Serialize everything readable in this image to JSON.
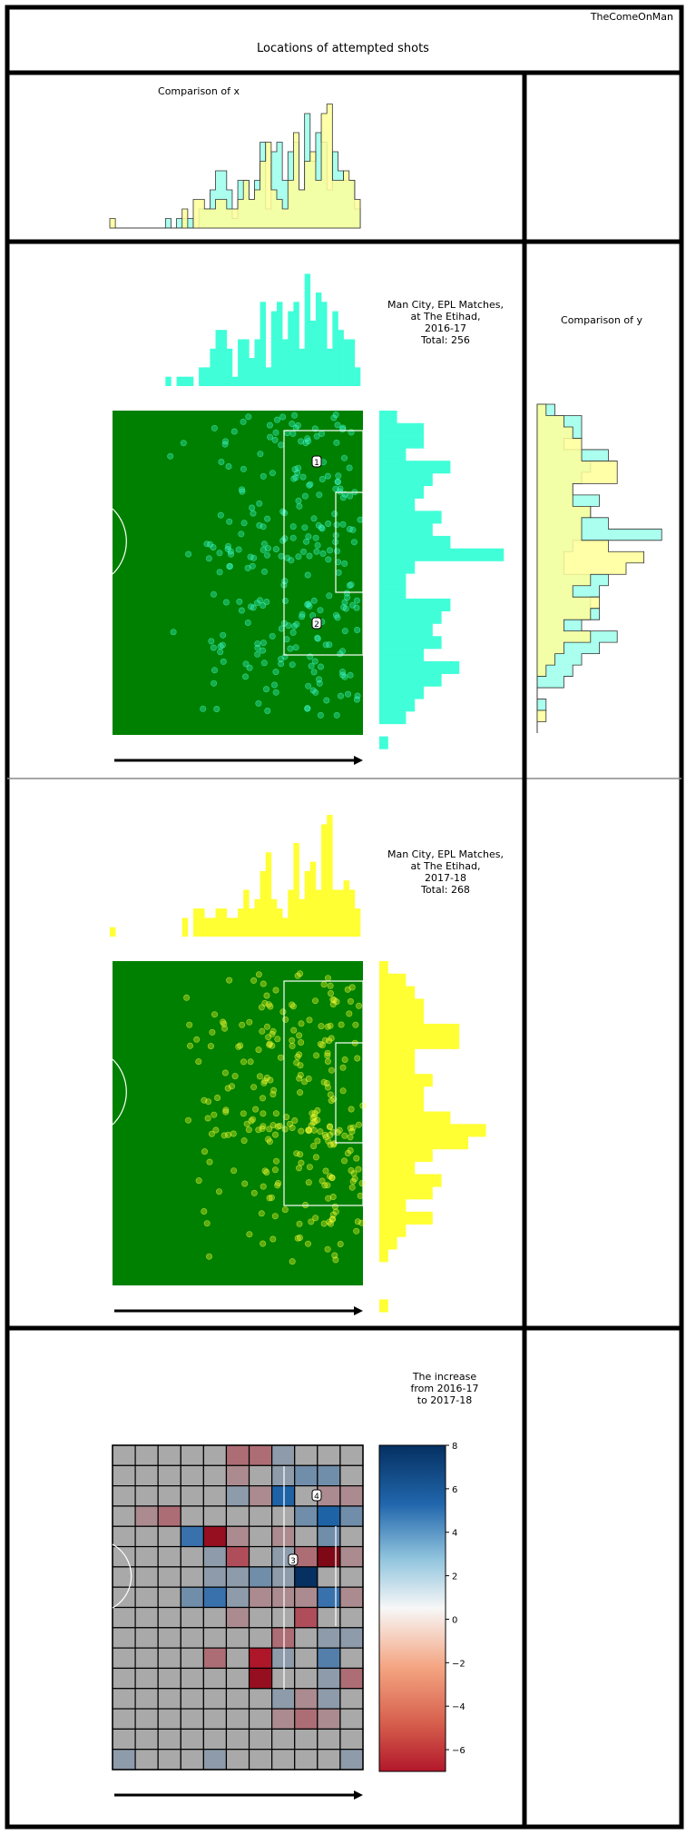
{
  "watermark": "TheComeOnMan",
  "title": "Locations of attempted shots",
  "colors": {
    "pitch": "#008000",
    "season_2016": "#40ffd8",
    "season_2017": "#ffff33",
    "compare_2016": "#aaffee",
    "compare_2017": "#ffff99",
    "overlap": "#d4ff88",
    "frame": "#000000"
  },
  "panels": {
    "compare_x_title": "Comparison of x",
    "compare_y_title": "Comparison of y",
    "season_2016": {
      "line1": "Man City, EPL Matches,",
      "line2": "at The Etihad,",
      "line3": "2016-17",
      "line4": "Total: 256"
    },
    "season_2017": {
      "line1": "Man City, EPL Matches,",
      "line2": "at The Etihad,",
      "line3": "2017-18",
      "line4": "Total: 268"
    },
    "increase": {
      "line1": "The increase",
      "line2": "from 2016-17",
      "line3": "to 2017-18"
    }
  },
  "chart_data": [
    {
      "type": "bar",
      "name": "hist_x_2016",
      "x_bins": 45,
      "values": [
        0,
        0,
        0,
        0,
        0,
        0,
        0,
        0,
        0,
        0,
        1,
        0,
        1,
        1,
        1,
        0,
        2,
        2,
        4,
        6,
        6,
        4,
        1,
        5,
        5,
        3,
        5,
        9,
        2,
        8,
        9,
        5,
        8,
        9,
        4,
        12,
        7,
        10,
        9,
        4,
        8,
        6,
        5,
        5,
        2
      ]
    },
    {
      "type": "bar",
      "name": "hist_x_2017",
      "x_bins": 45,
      "values": [
        1,
        0,
        0,
        0,
        0,
        0,
        0,
        0,
        0,
        0,
        0,
        0,
        0,
        2,
        0,
        3,
        3,
        2,
        2,
        3,
        3,
        2,
        2,
        3,
        5,
        3,
        4,
        7,
        9,
        4,
        3,
        2,
        5,
        10,
        4,
        7,
        8,
        5,
        12,
        13,
        5,
        5,
        6,
        5,
        3
      ]
    },
    {
      "type": "bar",
      "name": "hist_y_2016",
      "orientation": "horizontal",
      "values": [
        2,
        5,
        5,
        3,
        8,
        6,
        5,
        4,
        7,
        6,
        8,
        14,
        4,
        3,
        3,
        8,
        7,
        6,
        7,
        5,
        9,
        7,
        5,
        4,
        3,
        0,
        1,
        0,
        0
      ]
    },
    {
      "type": "bar",
      "name": "hist_y_2017",
      "orientation": "horizontal",
      "values": [
        1,
        3,
        4,
        5,
        5,
        9,
        9,
        4,
        4,
        6,
        5,
        5,
        8,
        12,
        10,
        6,
        4,
        7,
        6,
        3,
        6,
        3,
        2,
        1,
        0,
        0,
        0,
        1,
        0
      ]
    },
    {
      "type": "heatmap",
      "name": "increase_grid",
      "rows": 16,
      "cols": 11,
      "colorbar": {
        "min": -7,
        "max": 8,
        "ticks": [
          "8",
          "6",
          "4",
          "2",
          "0",
          "−2",
          "−4",
          "−6"
        ]
      },
      "values": [
        [
          0,
          0,
          0,
          0,
          0,
          -2,
          -2,
          1,
          0,
          0,
          0
        ],
        [
          0,
          0,
          0,
          0,
          0,
          -1,
          0,
          1,
          2,
          2,
          0
        ],
        [
          0,
          0,
          0,
          0,
          0,
          1,
          -1,
          5,
          0,
          -1,
          -1
        ],
        [
          0,
          -1,
          -2,
          0,
          0,
          0,
          0,
          0,
          2,
          5,
          2
        ],
        [
          0,
          0,
          0,
          4,
          -6,
          -1,
          0,
          -1,
          0,
          2,
          0
        ],
        [
          0,
          0,
          0,
          0,
          1,
          -3,
          0,
          1,
          -2,
          -7,
          -1
        ],
        [
          0,
          0,
          0,
          0,
          1,
          1,
          2,
          1,
          8,
          0,
          0
        ],
        [
          0,
          0,
          0,
          2,
          4,
          1,
          -1,
          -1,
          -1,
          4,
          -1
        ],
        [
          0,
          0,
          0,
          0,
          0,
          -1,
          0,
          0,
          -3,
          0,
          0
        ],
        [
          0,
          0,
          0,
          0,
          0,
          0,
          0,
          -2,
          0,
          1,
          1
        ],
        [
          0,
          0,
          0,
          0,
          -2,
          0,
          -5,
          1,
          0,
          3,
          0
        ],
        [
          0,
          0,
          0,
          0,
          0,
          0,
          -6,
          0,
          0,
          1,
          -2
        ],
        [
          0,
          0,
          0,
          0,
          0,
          0,
          0,
          1,
          -1,
          1,
          0
        ],
        [
          0,
          0,
          0,
          0,
          0,
          0,
          0,
          -1,
          -2,
          -1,
          0
        ],
        [
          0,
          0,
          0,
          0,
          0,
          0,
          0,
          0,
          0,
          0,
          0
        ],
        [
          1,
          0,
          0,
          0,
          1,
          0,
          0,
          0,
          0,
          0,
          1
        ]
      ]
    }
  ],
  "markers": {
    "m1": "1",
    "m2": "2",
    "m3": "3",
    "m4": "4"
  }
}
